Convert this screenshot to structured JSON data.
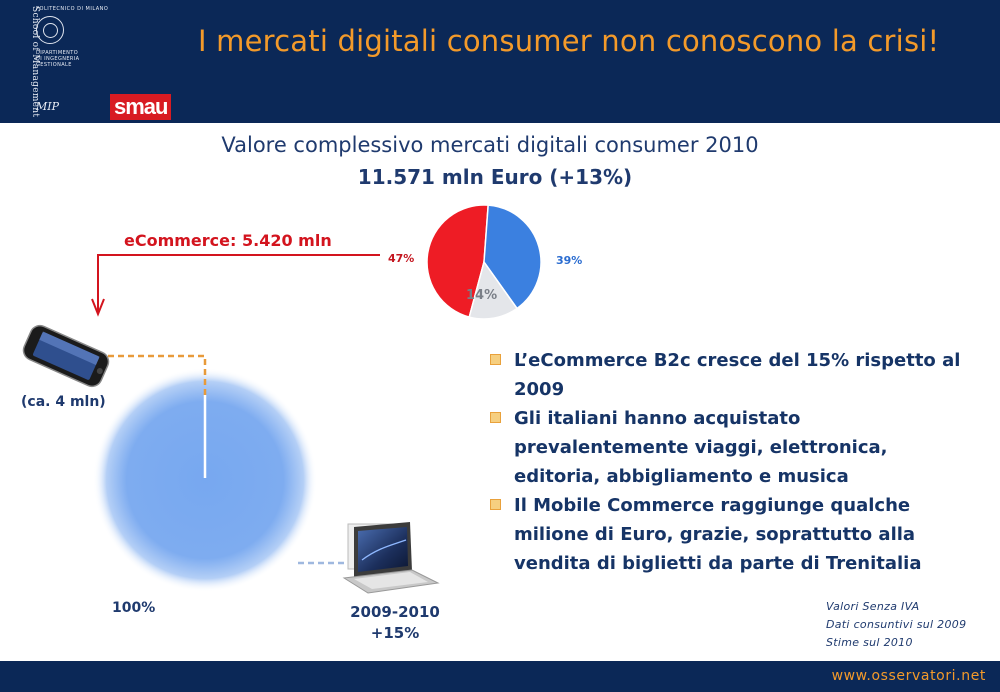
{
  "header": {
    "title": "I mercati digitali consumer non conoscono la crisi!",
    "logo_politecnico": "POLITECNICO DI MILANO",
    "logo_dipartimento": "DIPARTIMENTO\nDI INGEGNERIA\nGESTIONALE",
    "logo_school": "School of Management",
    "logo_mip": "MIP",
    "logo_smau": "smau",
    "colors": {
      "background": "#0b2857",
      "title": "#f39a2a",
      "smau": "#d81b22"
    }
  },
  "subtitle": {
    "line1": "Valore complessivo mercati digitali consumer 2010",
    "line2": "11.571 mln Euro (+13%)"
  },
  "chart_data": {
    "type": "pie",
    "values": [
      47,
      39,
      14
    ],
    "labels": [
      "47%",
      "39%",
      "14%"
    ],
    "colors": [
      "#ee1c25",
      "#3b80e0",
      "#e4e6ea"
    ]
  },
  "ecommerce": {
    "label": "eCommerce: 5.420 mln",
    "phone_caption": "(ca. 4 mln)",
    "circle_label": "100%",
    "period": "2009-2010",
    "growth": "+15%"
  },
  "bullets": [
    "L’eCommerce B2c cresce del 15% rispetto al 2009",
    "Gli italiani hanno acquistato prevalentemente viaggi, elettronica, editoria, abbigliamento e musica",
    "Il Mobile Commerce raggiunge qualche milione di  Euro, grazie, soprattutto alla vendita di biglietti da parte di Trenitalia"
  ],
  "notes": [
    "Valori Senza IVA",
    "Dati consuntivi sul 2009",
    "Stime sul 2010"
  ],
  "footer": {
    "url": "www.osservatori.net"
  }
}
